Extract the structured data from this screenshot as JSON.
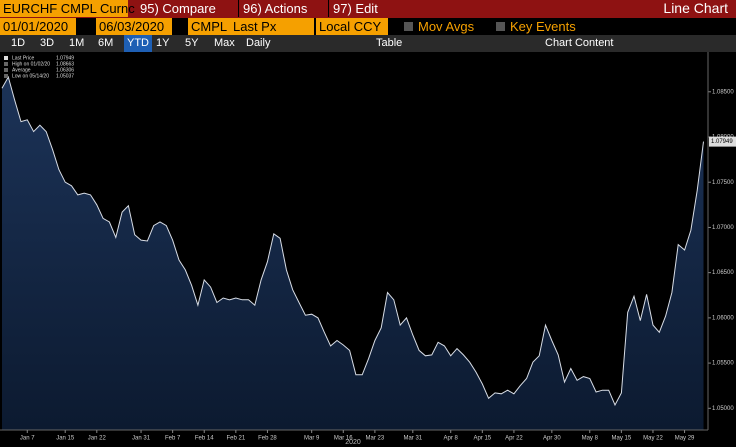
{
  "toolbar": {
    "security": "EURCHF CMPL Curnc",
    "buttons": [
      "95) Compare",
      "96) Actions",
      "97) Edit"
    ],
    "view": "Line Chart"
  },
  "controls": {
    "start_date": "01/01/2020",
    "end_date": "06/03/2020",
    "source": "CMPL",
    "field": "Last Px",
    "currency": "Local CCY",
    "checkboxes": [
      "Mov Avgs",
      "Key Events"
    ]
  },
  "ranges": [
    "1D",
    "3D",
    "1M",
    "6M",
    "YTD",
    "1Y",
    "5Y",
    "Max"
  ],
  "frequency": "Daily",
  "table": "Table",
  "chart_content": "Chart Content",
  "chart_data": {
    "type": "area",
    "line_color": "#d8dde6",
    "fill_color": "#14284a",
    "legend": [
      {
        "label": "Last Price",
        "value": 1.07949
      },
      {
        "label": "High on 01/02/20",
        "value": 1.08663
      },
      {
        "label": "Average",
        "value": 1.06306
      },
      {
        "label": "Low on 05/14/20",
        "value": 1.05037
      }
    ],
    "last_label": "1.07949",
    "x_label": "2020",
    "categories": [
      null,
      null,
      null,
      null,
      "Jan 7",
      null,
      null,
      null,
      null,
      null,
      "Jan 15",
      null,
      null,
      null,
      null,
      "Jan 22",
      null,
      null,
      null,
      null,
      null,
      null,
      "Jan 31",
      null,
      null,
      null,
      null,
      "Feb 7",
      null,
      null,
      null,
      null,
      "Feb 14",
      null,
      null,
      null,
      null,
      "Feb 21",
      null,
      null,
      null,
      null,
      "Feb 28",
      null,
      null,
      null,
      null,
      null,
      null,
      "Mar 9",
      null,
      null,
      null,
      null,
      "Mar 16",
      null,
      null,
      null,
      null,
      "Mar 23",
      null,
      null,
      null,
      null,
      null,
      "Mar 31",
      null,
      null,
      null,
      null,
      null,
      "Apr 8",
      null,
      null,
      null,
      null,
      "Apr 15",
      null,
      null,
      null,
      null,
      "Apr 22",
      null,
      null,
      null,
      null,
      null,
      "Apr 30",
      null,
      null,
      null,
      null,
      null,
      "May 8",
      null,
      null,
      null,
      null,
      "May 15",
      null,
      null,
      null,
      null,
      "May 22",
      null,
      null,
      null,
      null,
      "May 29",
      null,
      null,
      null
    ],
    "values": [
      1.0854,
      1.08663,
      1.0841,
      1.0817,
      1.0819,
      1.0806,
      1.0813,
      1.0806,
      1.0786,
      1.0764,
      1.075,
      1.0746,
      1.0736,
      1.0738,
      1.0736,
      1.0725,
      1.071,
      1.0706,
      1.0689,
      1.0717,
      1.0724,
      1.0692,
      1.0686,
      1.0685,
      1.0702,
      1.0706,
      1.0702,
      1.0686,
      1.0664,
      1.0653,
      1.0636,
      1.0614,
      1.0642,
      1.0634,
      1.0617,
      1.0622,
      1.062,
      1.0622,
      1.062,
      1.062,
      1.0614,
      1.0642,
      1.0662,
      1.0693,
      1.0688,
      1.0653,
      1.0631,
      1.0617,
      1.0603,
      1.0604,
      1.06,
      1.0584,
      1.0569,
      1.0575,
      1.057,
      1.0564,
      1.0537,
      1.0537,
      1.0555,
      1.0575,
      1.0589,
      1.0628,
      1.062,
      1.0592,
      1.06,
      1.0581,
      1.0564,
      1.0558,
      1.0559,
      1.0573,
      1.0569,
      1.0558,
      1.0566,
      1.0559,
      1.0551,
      1.054,
      1.0527,
      1.0511,
      1.0517,
      1.0516,
      1.052,
      1.0516,
      1.0525,
      1.0533,
      1.0551,
      1.0558,
      1.0592,
      1.0575,
      1.0559,
      1.0529,
      1.0544,
      1.0531,
      1.0535,
      1.0533,
      1.0518,
      1.052,
      1.052,
      1.05037,
      1.0517,
      1.0606,
      1.0624,
      1.0597,
      1.0626,
      1.0592,
      1.0584,
      1.0602,
      1.0628,
      1.0681,
      1.0675,
      1.0697,
      1.0741,
      1.07949
    ],
    "ylim": [
      1.0476,
      1.0894
    ],
    "yticks": [
      {
        "value": 1.05,
        "label": "1.05000"
      },
      {
        "value": 1.055,
        "label": "1.05500"
      },
      {
        "value": 1.06,
        "label": "1.06000"
      },
      {
        "value": 1.065,
        "label": "1.06500"
      },
      {
        "value": 1.07,
        "label": "1.07000"
      },
      {
        "value": 1.075,
        "label": "1.07500"
      },
      {
        "value": 1.08,
        "label": "1.08000"
      },
      {
        "value": 1.085,
        "label": "1.08500"
      }
    ]
  }
}
